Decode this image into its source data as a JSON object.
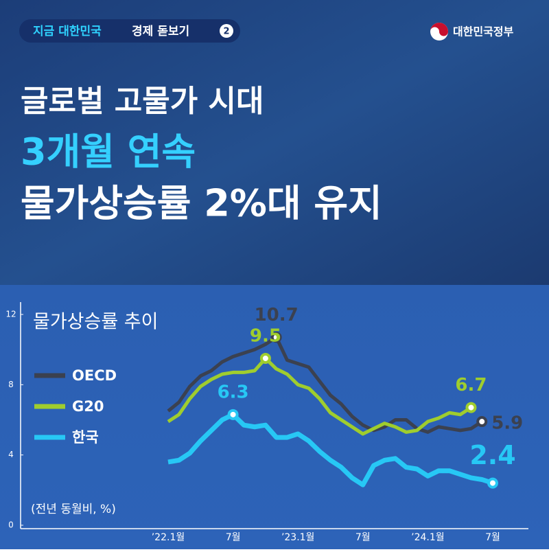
{
  "header": {
    "badge_highlight": "지금 대한민국",
    "badge_text": "경제 돋보기",
    "badge_number": "2",
    "logo": "대한민국정부",
    "title_line1": "글로벌 고물가 시대",
    "title_line2": "3개월 연속",
    "title_line3": "물가상승률 2%대 유지"
  },
  "chart_data": {
    "type": "line",
    "title": "물가상승률 추이",
    "unit_note": "(전년 동월비, %)",
    "categories": [
      "’22.1월",
      null,
      null,
      null,
      null,
      null,
      "7월",
      null,
      null,
      null,
      null,
      null,
      "’23.1월",
      null,
      null,
      null,
      null,
      null,
      "7월",
      null,
      null,
      null,
      null,
      null,
      "’24.1월",
      null,
      null,
      null,
      null,
      null,
      "7월"
    ],
    "ylim": [
      0,
      12
    ],
    "yticks": [
      0,
      4,
      8,
      12
    ],
    "grid": false,
    "series": [
      {
        "name": "OECD",
        "color": "#3b4150",
        "values": [
          6.5,
          7.0,
          7.9,
          8.5,
          8.8,
          9.3,
          9.6,
          9.8,
          10.0,
          10.3,
          10.7,
          9.4,
          9.2,
          9.0,
          8.2,
          7.4,
          6.9,
          6.2,
          5.7,
          5.4,
          5.6,
          6.0,
          6.0,
          5.5,
          5.3,
          5.6,
          5.5,
          5.4,
          5.5,
          5.9,
          null
        ]
      },
      {
        "name": "G20",
        "color": "#9fcd2e",
        "values": [
          5.9,
          6.3,
          7.2,
          7.9,
          8.3,
          8.6,
          8.7,
          8.7,
          8.8,
          9.5,
          8.9,
          8.6,
          8.0,
          7.8,
          7.2,
          6.4,
          6.0,
          5.6,
          5.2,
          5.5,
          5.8,
          5.6,
          5.3,
          5.4,
          5.9,
          6.1,
          6.4,
          6.3,
          6.7,
          null,
          null
        ]
      },
      {
        "name": "한국",
        "color": "#27c8f5",
        "values": [
          3.6,
          3.7,
          4.1,
          4.8,
          5.4,
          6.0,
          6.3,
          5.7,
          5.6,
          5.7,
          5.0,
          5.0,
          5.2,
          4.8,
          4.2,
          3.7,
          3.3,
          2.7,
          2.3,
          3.4,
          3.7,
          3.8,
          3.3,
          3.2,
          2.8,
          3.1,
          3.1,
          2.9,
          2.7,
          2.6,
          2.4
        ]
      }
    ]
  }
}
